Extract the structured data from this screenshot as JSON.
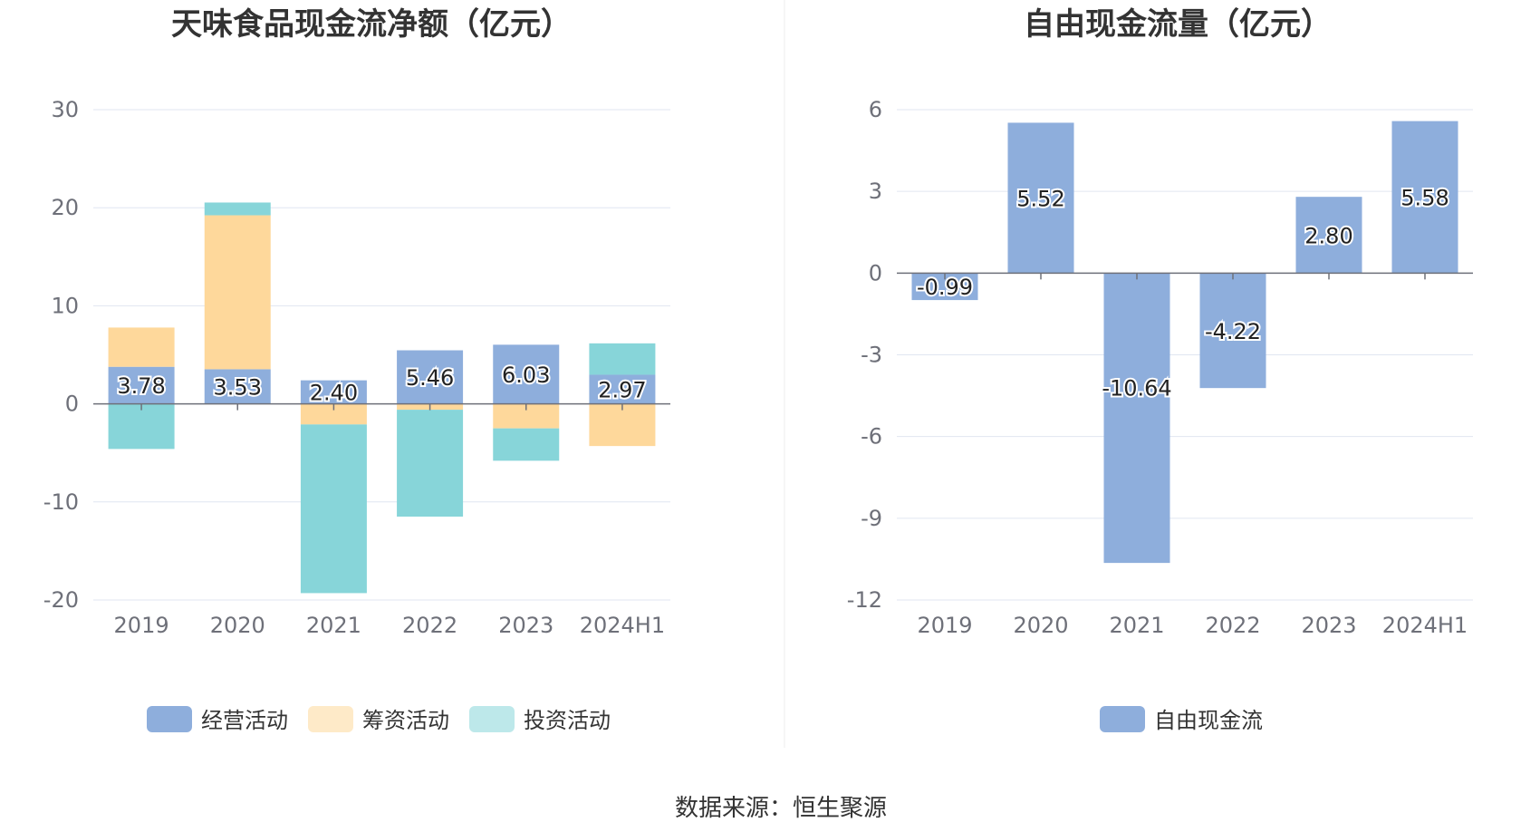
{
  "source_label": "数据来源：恒生聚源",
  "chart_data": [
    {
      "type": "bar",
      "stacked": true,
      "title": "天味食品现金流净额（亿元）",
      "categories": [
        "2019",
        "2020",
        "2021",
        "2022",
        "2023",
        "2024H1"
      ],
      "ylim": [
        -20,
        30
      ],
      "yticks": [
        30,
        20,
        10,
        0,
        -10,
        -20
      ],
      "grid": true,
      "legend_position": "bottom",
      "series": [
        {
          "name": "经营活动",
          "color": "#8eaedc",
          "values": [
            3.78,
            3.53,
            2.4,
            5.46,
            6.03,
            2.97
          ],
          "labels": [
            "3.78",
            "3.53",
            "2.40",
            "5.46",
            "6.03",
            "2.97"
          ]
        },
        {
          "name": "筹资活动",
          "color": "#fed89b",
          "values": [
            4.0,
            15.7,
            -2.1,
            -0.6,
            -2.5,
            -4.3
          ]
        },
        {
          "name": "投资活动",
          "color": "#87d5d9",
          "values": [
            -4.6,
            1.3,
            -17.2,
            -10.9,
            -3.3,
            3.2
          ]
        }
      ]
    },
    {
      "type": "bar",
      "title": "自由现金流量（亿元）",
      "categories": [
        "2019",
        "2020",
        "2021",
        "2022",
        "2023",
        "2024H1"
      ],
      "ylim": [
        -12,
        6
      ],
      "yticks": [
        6,
        3,
        0,
        -3,
        -6,
        -9,
        -12
      ],
      "grid": true,
      "legend_position": "bottom",
      "series": [
        {
          "name": "自由现金流",
          "color": "#8eaedc",
          "values": [
            -0.99,
            5.52,
            -10.64,
            -4.22,
            2.8,
            5.58
          ],
          "labels": [
            "-0.99",
            "5.52",
            "-10.64",
            "-4.22",
            "2.80",
            "5.58"
          ]
        }
      ]
    }
  ]
}
